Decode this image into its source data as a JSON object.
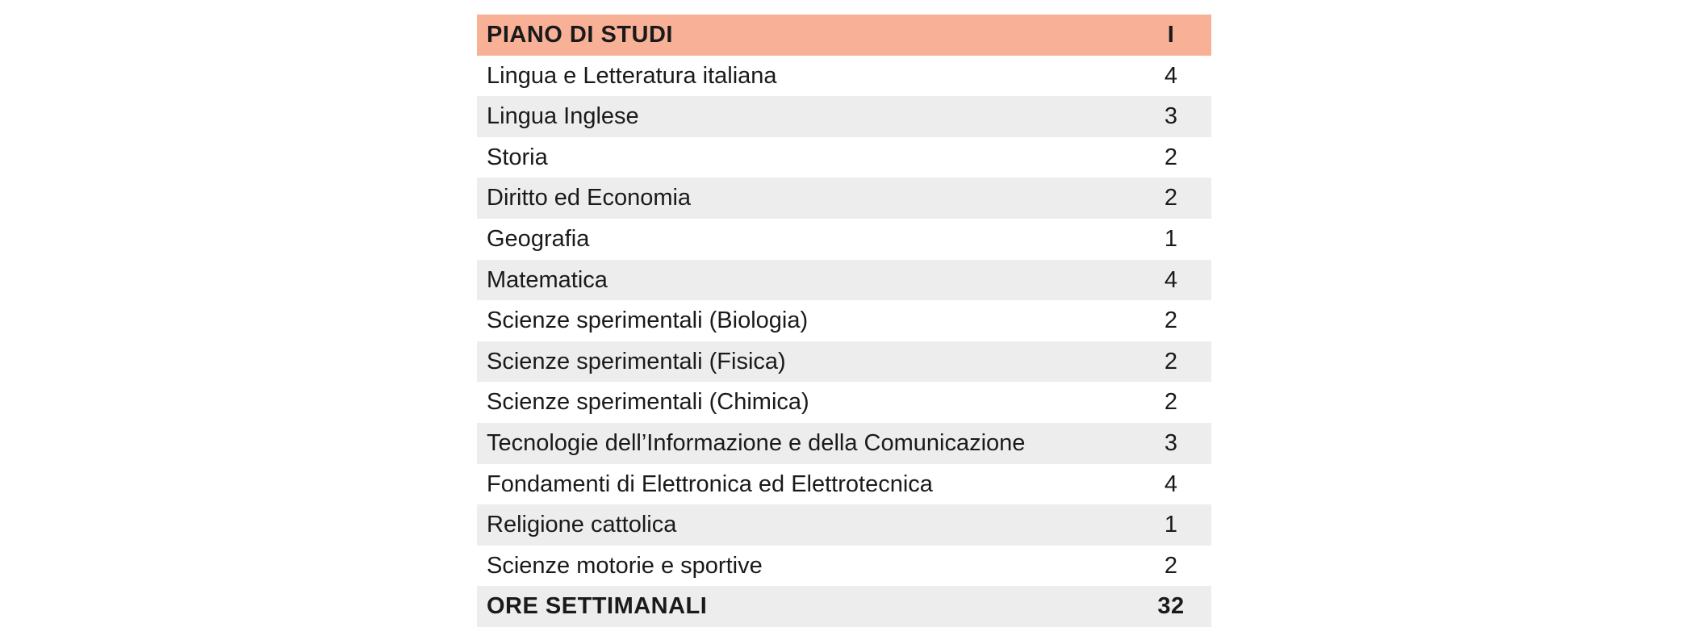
{
  "table": {
    "header": {
      "subject": "PIANO DI STUDI",
      "hours": "I"
    },
    "rows": [
      {
        "subject": "Lingua e Letteratura italiana",
        "hours": "4"
      },
      {
        "subject": "Lingua Inglese",
        "hours": "3"
      },
      {
        "subject": "Storia",
        "hours": "2"
      },
      {
        "subject": "Diritto ed Economia",
        "hours": "2"
      },
      {
        "subject": "Geografia",
        "hours": "1"
      },
      {
        "subject": "Matematica",
        "hours": "4"
      },
      {
        "subject": "Scienze sperimentali (Biologia)",
        "hours": "2"
      },
      {
        "subject": "Scienze sperimentali (Fisica)",
        "hours": "2"
      },
      {
        "subject": "Scienze sperimentali (Chimica)",
        "hours": "2"
      },
      {
        "subject": "Tecnologie dell’Informazione e della Comunicazione",
        "hours": "3"
      },
      {
        "subject": "Fondamenti di Elettronica ed Elettrotecnica",
        "hours": "4"
      },
      {
        "subject": "Religione cattolica",
        "hours": "1"
      },
      {
        "subject": "Scienze motorie e sportive",
        "hours": "2"
      }
    ],
    "total": {
      "subject": "ORE SETTIMANALI",
      "hours": "32"
    },
    "colors": {
      "header_bg": "#f8b097",
      "stripe_bg": "#ededed"
    }
  }
}
